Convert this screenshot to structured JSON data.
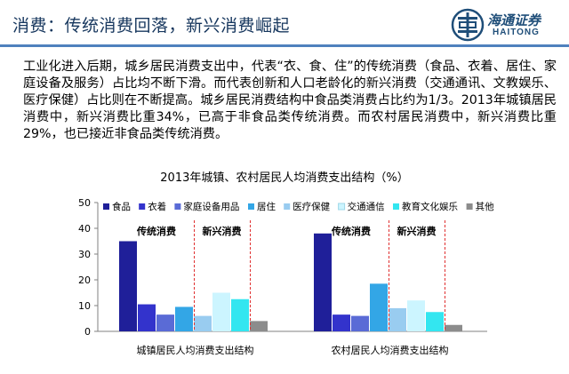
{
  "slide": {
    "title": "消费：传统消费回落，新兴消费崛起",
    "logo": {
      "cn": "海通证券",
      "en": "HAITONG",
      "icon": "haitong-emblem-icon"
    },
    "accent_color": "#4f81bd",
    "paragraph": "工业化进入后期，城乡居民消费支出中，代表“衣、食、住”的传统消费（食品、衣着、居住、家庭设备及服务）占比均不断下滑。而代表创新和人口老龄化的新兴消费（交通通讯、文教娱乐、医疗保健）占比则在不断提高。城乡居民消费结构中食品类消费占比约为1/3。2013年城镇居民消费中，新兴消费比重34%，已高于非食品类传统消费。而农村居民消费中，新兴消费比重29%，也已接近非食品类传统消费。"
  },
  "chart_data": {
    "type": "bar",
    "title": "2013年城镇、农村居民人均消费支出结构（%）",
    "categories": [
      "城镇居民人均消费支出结构",
      "农村居民人均消费支出结构"
    ],
    "ylim": [
      0,
      50
    ],
    "yticks": [
      0,
      10,
      20,
      30,
      40,
      50
    ],
    "grid": false,
    "legend_position": "top",
    "series": [
      {
        "name": "食品",
        "color": "#1f1f99",
        "values": [
          35,
          38
        ]
      },
      {
        "name": "衣着",
        "color": "#3333cc",
        "values": [
          10.5,
          6.5
        ]
      },
      {
        "name": "家庭设备用品",
        "color": "#5a6bd6",
        "values": [
          6.5,
          6
        ]
      },
      {
        "name": "居住",
        "color": "#33a6e6",
        "values": [
          9.5,
          18.5
        ]
      },
      {
        "name": "医疗保健",
        "color": "#99ccf0",
        "values": [
          6,
          9
        ]
      },
      {
        "name": "交通通信",
        "color": "#ccf5ff",
        "values": [
          15,
          12
        ]
      },
      {
        "name": "教育文化娱乐",
        "color": "#33e6f0",
        "values": [
          12.5,
          7.5
        ]
      },
      {
        "name": "其他",
        "color": "#8c8c8c",
        "values": [
          4,
          2.5
        ]
      }
    ],
    "annotations": {
      "traditional": "传统消费",
      "emerging": "新兴消费"
    }
  }
}
